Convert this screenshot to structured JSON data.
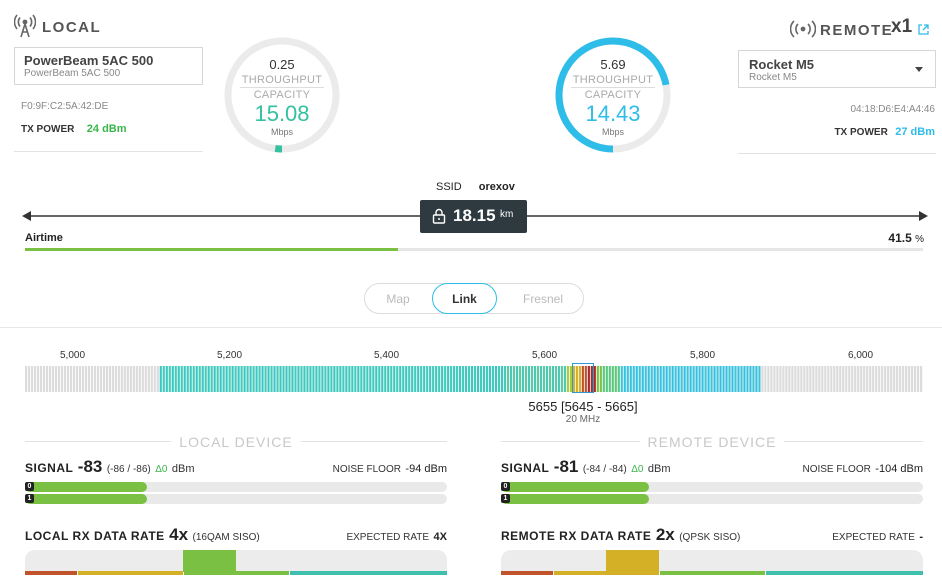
{
  "local": {
    "title": "LOCAL",
    "device_name": "PowerBeam 5AC 500",
    "device_sub": "PowerBeam 5AC 500",
    "mac": "F0:9F:C2:5A:42:DE",
    "tx_power_label": "TX POWER",
    "tx_power_value": "24 dBm",
    "throughput": "0.25",
    "throughput_label": "THROUGHPUT",
    "capacity_label": "CAPACITY",
    "capacity": "15.08",
    "unit": "Mbps",
    "gauge_fraction": 0.02,
    "color": "#33c1a0"
  },
  "remote": {
    "title": "REMOTE",
    "count": "x1",
    "device_name": "Rocket M5",
    "device_sub": "Rocket M5",
    "mac": "04:18:D6:E4:A4:46",
    "tx_power_label": "TX POWER",
    "tx_power_value": "27 dBm",
    "throughput": "5.69",
    "throughput_label": "THROUGHPUT",
    "capacity_label": "CAPACITY",
    "capacity": "14.43",
    "unit": "Mbps",
    "gauge_fraction": 0.72,
    "color": "#2ebde8"
  },
  "link": {
    "ssid_label": "SSID",
    "ssid_value": "orexov",
    "distance": "18.15",
    "distance_unit": "km",
    "airtime_label": "Airtime",
    "airtime_value": "41.5",
    "airtime_unit": "%",
    "airtime_fraction": 0.415
  },
  "tabs": [
    {
      "label": "Map",
      "active": false
    },
    {
      "label": "Link",
      "active": true
    },
    {
      "label": "Fresnel",
      "active": false
    }
  ],
  "spectrum": {
    "ticks": [
      "5,000",
      "5,200",
      "5,400",
      "5,600",
      "5,800",
      "6,000"
    ],
    "frequency": "5655 [5645 - 5665]",
    "width": "20 MHz"
  },
  "local_device": {
    "section_title": "LOCAL DEVICE",
    "signal_label": "SIGNAL",
    "signal_value": "-83",
    "signal_detail": "(-86 / -86)",
    "signal_delta": "Δ0",
    "signal_unit": "dBm",
    "noise_label": "NOISE FLOOR",
    "noise_value": "-94 dBm",
    "chain0": "0",
    "chain1": "1",
    "chain0_fraction": 0.29,
    "chain1_fraction": 0.29,
    "rate_label": "LOCAL RX DATA RATE",
    "rate_value": "4x",
    "rate_detail": "(16QAM SISO)",
    "expected_label": "EXPECTED RATE",
    "expected_value": "4X",
    "rate_color": "#7ac143"
  },
  "remote_device": {
    "section_title": "REMOTE DEVICE",
    "signal_label": "SIGNAL",
    "signal_value": "-81",
    "signal_detail": "(-84 / -84)",
    "signal_delta": "Δ0",
    "signal_unit": "dBm",
    "noise_label": "NOISE FLOOR",
    "noise_value": "-104 dBm",
    "chain0": "0",
    "chain1": "1",
    "chain0_fraction": 0.35,
    "chain1_fraction": 0.35,
    "rate_label": "REMOTE RX DATA RATE",
    "rate_value": "2x",
    "rate_detail": "(QPSK SISO)",
    "expected_label": "EXPECTED RATE",
    "expected_value": "-",
    "rate_color": "#d4b026"
  }
}
